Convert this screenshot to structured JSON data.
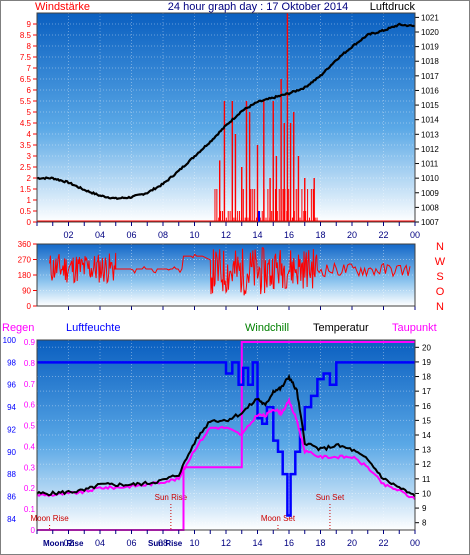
{
  "header": {
    "left_title": "Windstärke",
    "center_title": "24 hour graph day : 17 Oktober 2014",
    "right_title": "Luftdruck"
  },
  "colors": {
    "wind": "#ff0000",
    "pressure": "#000000",
    "humidity": "#0000ff",
    "rain": "#ff00ff",
    "windchill": "#008000",
    "temperature": "#000000",
    "dewpoint": "#ff00ff",
    "sun_moon_label": "#cc0000",
    "sky_top": "#0a5fc0",
    "sky_bottom": "#ffffff"
  },
  "chart_data": [
    {
      "type": "line",
      "name": "wind-and-pressure",
      "x_ticks": [
        "02",
        "04",
        "06",
        "08",
        "10",
        "12",
        "14",
        "16",
        "18",
        "20",
        "22",
        "00"
      ],
      "left_axis": {
        "ticks": [
          "0",
          "0.5",
          "1",
          "1.5",
          "2",
          "2.5",
          "3",
          "3.5",
          "4",
          "4.5",
          "5",
          "5.5",
          "6",
          "6.5",
          "7",
          "7.5",
          "8",
          "8.5",
          "9"
        ],
        "min": 0,
        "max": 9.5
      },
      "right_axis": {
        "ticks": [
          "1007",
          "1008",
          "1009",
          "1010",
          "1011",
          "1012",
          "1013",
          "1014",
          "1015",
          "1016",
          "1017",
          "1018",
          "1019",
          "1020",
          "1021"
        ],
        "min": 1007,
        "max": 1021.3
      },
      "pressure": {
        "x": [
          0,
          1,
          2,
          3,
          4,
          5,
          6,
          7,
          8,
          9,
          10,
          11,
          12,
          13,
          14,
          15,
          16,
          17,
          18,
          19,
          20,
          21,
          22,
          23,
          24
        ],
        "y": [
          1010.0,
          1010.0,
          1009.7,
          1009.2,
          1008.8,
          1008.6,
          1008.7,
          1009.0,
          1009.6,
          1010.5,
          1011.5,
          1012.5,
          1013.6,
          1014.6,
          1015.2,
          1015.5,
          1015.8,
          1016.2,
          1017.0,
          1018.1,
          1019.0,
          1019.8,
          1020.1,
          1020.5,
          1020.4
        ]
      },
      "wind_base": {
        "start": 11.3,
        "end": 17.8,
        "levels": [
          1.5,
          0.5,
          0.2
        ]
      },
      "wind_gust": {
        "x": [
          11.6,
          11.9,
          12.4,
          12.6,
          13.0,
          13.3,
          13.5,
          14.0,
          14.4,
          14.8,
          15.0,
          15.2,
          15.5,
          15.7,
          15.9,
          16.1,
          16.3,
          16.6,
          17.0,
          17.6
        ],
        "y": [
          2.8,
          5.5,
          5.5,
          4.0,
          2.5,
          5.5,
          5.0,
          3.5,
          5.5,
          2.0,
          5.5,
          3.0,
          6.5,
          4.5,
          9.5,
          4.5,
          5.0,
          3.0,
          2.0,
          2.0
        ]
      },
      "wind_marker": {
        "x": 14.1,
        "y": 0.5
      }
    },
    {
      "type": "scatter",
      "name": "wind-direction",
      "y_ticks": [
        "0",
        "90",
        "180",
        "270",
        "360"
      ],
      "compass_labels": [
        "N",
        "W",
        "S",
        "O",
        "N"
      ],
      "ylim": [
        0,
        360
      ],
      "segments": [
        {
          "start": 0.8,
          "end": 5.0,
          "mean": 220,
          "spread": 90
        },
        {
          "start": 5.0,
          "end": 9.3,
          "mean": 215,
          "spread": 25
        },
        {
          "start": 9.3,
          "end": 10.6,
          "mean": 290,
          "spread": 10
        },
        {
          "start": 11.0,
          "end": 15.0,
          "mean": 200,
          "spread": 140
        },
        {
          "start": 15.0,
          "end": 17.8,
          "mean": 220,
          "spread": 120
        },
        {
          "start": 17.8,
          "end": 23.8,
          "mean": 210,
          "spread": 40
        }
      ]
    },
    {
      "type": "line",
      "name": "temperature-humidity",
      "labels": {
        "regen": "Regen",
        "luftfeuchte": "Luftfeuchte",
        "windchill": "Windchill",
        "temperatur": "Temperatur",
        "taupunkt": "Taupunkt"
      },
      "left_outer_ticks": [
        "0",
        "0.1",
        "0.2",
        "0.3",
        "0.4",
        "0.5",
        "0.6",
        "0.7",
        "0.8",
        "0.9"
      ],
      "left_inner_ticks": [
        "84",
        "86",
        "88",
        "90",
        "92",
        "94",
        "96",
        "98",
        "100"
      ],
      "right_ticks": [
        "8",
        "9",
        "10",
        "11",
        "12",
        "13",
        "14",
        "15",
        "16",
        "17",
        "18",
        "19",
        "20"
      ],
      "temp_axis": [
        7.5,
        20.5
      ],
      "humidity_axis": [
        83,
        100
      ],
      "rain_axis": [
        0,
        0.9
      ],
      "x_ticks": [
        "02",
        "04",
        "06",
        "08",
        "10",
        "12",
        "14",
        "16",
        "18",
        "20",
        "22",
        "00"
      ],
      "temperature": {
        "x": [
          0,
          1,
          2,
          3,
          4,
          5,
          6,
          7,
          8,
          9,
          10,
          11,
          12,
          13,
          14,
          14.5,
          15,
          15.5,
          16,
          16.5,
          17,
          18,
          19,
          20,
          21,
          22,
          23,
          24
        ],
        "y": [
          10.0,
          10.0,
          10.1,
          10.2,
          10.6,
          10.6,
          10.6,
          10.7,
          10.9,
          11.3,
          13.5,
          15.0,
          15.0,
          15.5,
          16.5,
          16.0,
          17.0,
          17.2,
          18.0,
          17.0,
          13.5,
          13.0,
          13.3,
          13.0,
          12.3,
          11.0,
          10.4,
          9.8
        ]
      },
      "dewpoint": {
        "x": [
          0,
          1,
          2,
          3,
          4,
          5,
          6,
          7,
          8,
          9,
          10,
          11,
          12,
          13,
          14,
          14.5,
          15,
          15.5,
          16,
          16.5,
          17,
          18,
          19,
          20,
          21,
          22,
          23,
          24
        ],
        "y": [
          9.9,
          9.9,
          10.0,
          10.1,
          10.4,
          10.4,
          10.5,
          10.6,
          10.8,
          11.0,
          13.0,
          14.5,
          14.5,
          14.0,
          15.4,
          15.3,
          15.8,
          15.5,
          16.3,
          15.0,
          12.9,
          12.5,
          12.5,
          12.5,
          11.8,
          10.6,
          10.2,
          9.6
        ]
      },
      "humidity": {
        "x": [
          0,
          1,
          11.8,
          12.0,
          12.4,
          12.8,
          13.1,
          13.4,
          13.7,
          14.0,
          14.3,
          14.6,
          15.0,
          15.3,
          15.6,
          15.9,
          16.1,
          16.4,
          16.7,
          17.0,
          17.4,
          17.8,
          18.2,
          18.6,
          19.0,
          24
        ],
        "y": [
          98,
          98,
          98,
          97,
          98,
          96,
          97.5,
          96,
          98,
          93,
          92.5,
          94,
          91,
          90,
          88,
          84.3,
          88,
          90,
          92,
          94,
          95,
          96.5,
          97,
          96,
          98,
          98
        ]
      },
      "rain": {
        "x": [
          0,
          9.3,
          9.3,
          13.0,
          13.0,
          24
        ],
        "y": [
          0.0,
          0.0,
          0.3,
          0.3,
          0.9,
          0.9
        ]
      },
      "events": [
        {
          "label": "Sun Rise",
          "x": 8.5,
          "row": "upper"
        },
        {
          "label": "Moon Rise",
          "x": 0.8,
          "row": "lower"
        },
        {
          "label": "Moon Set",
          "x": 15.3,
          "row": "lower"
        },
        {
          "label": "Sun Set",
          "x": 18.6,
          "row": "upper"
        }
      ],
      "bottom_left_labels": [
        "Moon Rise",
        "Sun Rise"
      ]
    }
  ]
}
